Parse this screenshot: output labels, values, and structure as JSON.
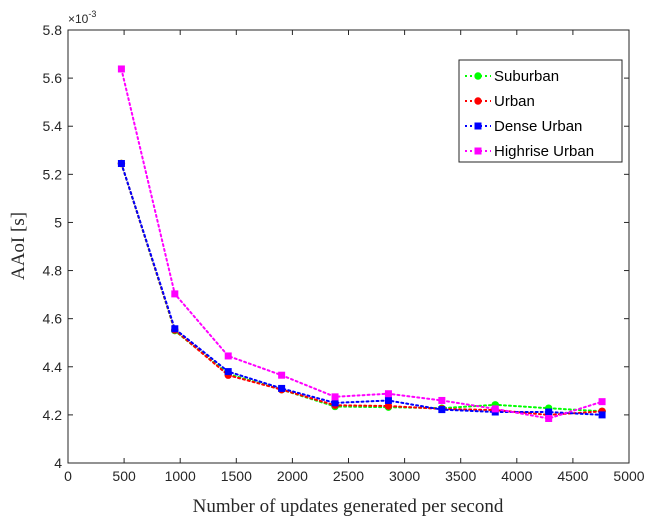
{
  "chart_data": {
    "type": "line",
    "xlabel": "Number of updates generated per second",
    "ylabel": "AAoI [s]",
    "y_multiplier": {
      "base": "×10",
      "exponent": "-3"
    },
    "xlim": [
      0,
      5000
    ],
    "ylim": [
      4.0,
      5.8
    ],
    "xticks": [
      "0",
      "500",
      "1000",
      "1500",
      "2000",
      "2500",
      "3000",
      "3500",
      "4000",
      "4500",
      "5000"
    ],
    "yticks": [
      "4",
      "4.2",
      "4.4",
      "4.6",
      "4.8",
      "5",
      "5.2",
      "5.4",
      "5.6",
      "5.8"
    ],
    "x": [
      476,
      952,
      1428,
      1904,
      2380,
      2856,
      3332,
      3808,
      4284,
      4760
    ],
    "series": [
      {
        "name": "Suburban",
        "color": "#00ff00",
        "marker": "circle",
        "values": [
          5.245,
          4.55,
          4.37,
          4.305,
          4.235,
          4.232,
          4.228,
          4.242,
          4.228,
          4.215
        ]
      },
      {
        "name": "Urban",
        "color": "#ff0000",
        "marker": "circle",
        "values": [
          5.245,
          4.553,
          4.365,
          4.305,
          4.24,
          4.237,
          4.225,
          4.22,
          4.2,
          4.215
        ]
      },
      {
        "name": "Dense Urban",
        "color": "#0000ff",
        "marker": "square",
        "values": [
          5.245,
          4.558,
          4.38,
          4.31,
          4.25,
          4.26,
          4.222,
          4.212,
          4.212,
          4.2
        ]
      },
      {
        "name": "Highrise Urban",
        "color": "#ff00ff",
        "marker": "square",
        "values": [
          5.638,
          4.703,
          4.445,
          4.365,
          4.275,
          4.288,
          4.26,
          4.225,
          4.185,
          4.255
        ]
      }
    ],
    "grid": false,
    "legend_position": "top-right"
  }
}
